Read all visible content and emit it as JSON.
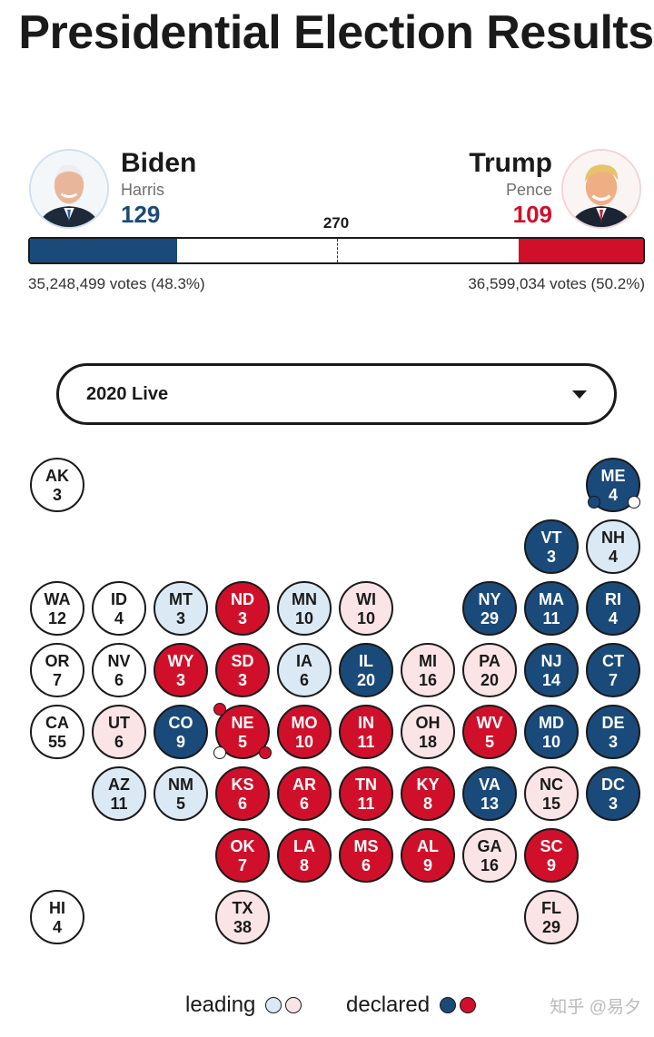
{
  "title": "Presidential Election Results",
  "candidates": {
    "dem": {
      "name": "Biden",
      "vp": "Harris",
      "electoral_votes": "129",
      "votes_text": "35,248,499 votes (48.3%)",
      "bar_fraction": 0.2397,
      "color": "#1a4a7a"
    },
    "rep": {
      "name": "Trump",
      "vp": "Pence",
      "electoral_votes": "109",
      "votes_text": "36,599,034 votes (50.2%)",
      "bar_fraction": 0.2026,
      "color": "#d0102a"
    }
  },
  "threshold": "270",
  "selector": {
    "value": "2020 Live"
  },
  "colors": {
    "declared_dem": "#1a4a7a",
    "declared_rep": "#d0102a",
    "leading_dem": "#dbe9f5",
    "leading_rep": "#fbe4e6",
    "none": "#ffffff"
  },
  "states": [
    {
      "abbr": "AK",
      "ev": "3",
      "row": 0,
      "col": 0,
      "status": "lead-none"
    },
    {
      "abbr": "ME",
      "ev": "4",
      "row": 0,
      "col": 9,
      "status": "decl-dem"
    },
    {
      "abbr": "VT",
      "ev": "3",
      "row": 1,
      "col": 8,
      "status": "decl-dem"
    },
    {
      "abbr": "NH",
      "ev": "4",
      "row": 1,
      "col": 9,
      "status": "lead-dem"
    },
    {
      "abbr": "WA",
      "ev": "12",
      "row": 2,
      "col": 0,
      "status": "lead-none"
    },
    {
      "abbr": "ID",
      "ev": "4",
      "row": 2,
      "col": 1,
      "status": "lead-none"
    },
    {
      "abbr": "MT",
      "ev": "3",
      "row": 2,
      "col": 2,
      "status": "lead-dem"
    },
    {
      "abbr": "ND",
      "ev": "3",
      "row": 2,
      "col": 3,
      "status": "decl-rep"
    },
    {
      "abbr": "MN",
      "ev": "10",
      "row": 2,
      "col": 4,
      "status": "lead-dem"
    },
    {
      "abbr": "WI",
      "ev": "10",
      "row": 2,
      "col": 5,
      "status": "lead-rep"
    },
    {
      "abbr": "NY",
      "ev": "29",
      "row": 2,
      "col": 7,
      "status": "decl-dem"
    },
    {
      "abbr": "MA",
      "ev": "11",
      "row": 2,
      "col": 8,
      "status": "decl-dem"
    },
    {
      "abbr": "RI",
      "ev": "4",
      "row": 2,
      "col": 9,
      "status": "decl-dem"
    },
    {
      "abbr": "OR",
      "ev": "7",
      "row": 3,
      "col": 0,
      "status": "lead-none"
    },
    {
      "abbr": "NV",
      "ev": "6",
      "row": 3,
      "col": 1,
      "status": "lead-none"
    },
    {
      "abbr": "WY",
      "ev": "3",
      "row": 3,
      "col": 2,
      "status": "decl-rep"
    },
    {
      "abbr": "SD",
      "ev": "3",
      "row": 3,
      "col": 3,
      "status": "decl-rep"
    },
    {
      "abbr": "IA",
      "ev": "6",
      "row": 3,
      "col": 4,
      "status": "lead-dem"
    },
    {
      "abbr": "IL",
      "ev": "20",
      "row": 3,
      "col": 5,
      "status": "decl-dem"
    },
    {
      "abbr": "MI",
      "ev": "16",
      "row": 3,
      "col": 6,
      "status": "lead-rep"
    },
    {
      "abbr": "PA",
      "ev": "20",
      "row": 3,
      "col": 7,
      "status": "lead-rep"
    },
    {
      "abbr": "NJ",
      "ev": "14",
      "row": 3,
      "col": 8,
      "status": "decl-dem"
    },
    {
      "abbr": "CT",
      "ev": "7",
      "row": 3,
      "col": 9,
      "status": "decl-dem"
    },
    {
      "abbr": "CA",
      "ev": "55",
      "row": 4,
      "col": 0,
      "status": "lead-none"
    },
    {
      "abbr": "UT",
      "ev": "6",
      "row": 4,
      "col": 1,
      "status": "lead-rep"
    },
    {
      "abbr": "CO",
      "ev": "9",
      "row": 4,
      "col": 2,
      "status": "decl-dem"
    },
    {
      "abbr": "NE",
      "ev": "5",
      "row": 4,
      "col": 3,
      "status": "decl-rep"
    },
    {
      "abbr": "MO",
      "ev": "10",
      "row": 4,
      "col": 4,
      "status": "decl-rep"
    },
    {
      "abbr": "IN",
      "ev": "11",
      "row": 4,
      "col": 5,
      "status": "decl-rep"
    },
    {
      "abbr": "OH",
      "ev": "18",
      "row": 4,
      "col": 6,
      "status": "lead-rep"
    },
    {
      "abbr": "WV",
      "ev": "5",
      "row": 4,
      "col": 7,
      "status": "decl-rep"
    },
    {
      "abbr": "MD",
      "ev": "10",
      "row": 4,
      "col": 8,
      "status": "decl-dem"
    },
    {
      "abbr": "DE",
      "ev": "3",
      "row": 4,
      "col": 9,
      "status": "decl-dem"
    },
    {
      "abbr": "AZ",
      "ev": "11",
      "row": 5,
      "col": 1,
      "status": "lead-dem"
    },
    {
      "abbr": "NM",
      "ev": "5",
      "row": 5,
      "col": 2,
      "status": "lead-dem"
    },
    {
      "abbr": "KS",
      "ev": "6",
      "row": 5,
      "col": 3,
      "status": "decl-rep"
    },
    {
      "abbr": "AR",
      "ev": "6",
      "row": 5,
      "col": 4,
      "status": "decl-rep"
    },
    {
      "abbr": "TN",
      "ev": "11",
      "row": 5,
      "col": 5,
      "status": "decl-rep"
    },
    {
      "abbr": "KY",
      "ev": "8",
      "row": 5,
      "col": 6,
      "status": "decl-rep"
    },
    {
      "abbr": "VA",
      "ev": "13",
      "row": 5,
      "col": 7,
      "status": "decl-dem"
    },
    {
      "abbr": "NC",
      "ev": "15",
      "row": 5,
      "col": 8,
      "status": "lead-rep"
    },
    {
      "abbr": "DC",
      "ev": "3",
      "row": 5,
      "col": 9,
      "status": "decl-dem"
    },
    {
      "abbr": "OK",
      "ev": "7",
      "row": 6,
      "col": 3,
      "status": "decl-rep"
    },
    {
      "abbr": "LA",
      "ev": "8",
      "row": 6,
      "col": 4,
      "status": "decl-rep"
    },
    {
      "abbr": "MS",
      "ev": "6",
      "row": 6,
      "col": 5,
      "status": "decl-rep"
    },
    {
      "abbr": "AL",
      "ev": "9",
      "row": 6,
      "col": 6,
      "status": "decl-rep"
    },
    {
      "abbr": "GA",
      "ev": "16",
      "row": 6,
      "col": 7,
      "status": "lead-rep"
    },
    {
      "abbr": "SC",
      "ev": "9",
      "row": 6,
      "col": 8,
      "status": "decl-rep"
    },
    {
      "abbr": "HI",
      "ev": "4",
      "row": 7,
      "col": 0,
      "status": "lead-none"
    },
    {
      "abbr": "TX",
      "ev": "38",
      "row": 7,
      "col": 3,
      "status": "lead-rep"
    },
    {
      "abbr": "FL",
      "ev": "29",
      "row": 7,
      "col": 8,
      "status": "lead-rep"
    }
  ],
  "district_dots": {
    "ME": [
      "decl-dem",
      "lead-none"
    ],
    "NE": [
      "decl-rep",
      "lead-none",
      "decl-rep"
    ]
  },
  "legend": {
    "leading_label": "leading",
    "declared_label": "declared"
  },
  "watermark": "知乎 @易夕"
}
